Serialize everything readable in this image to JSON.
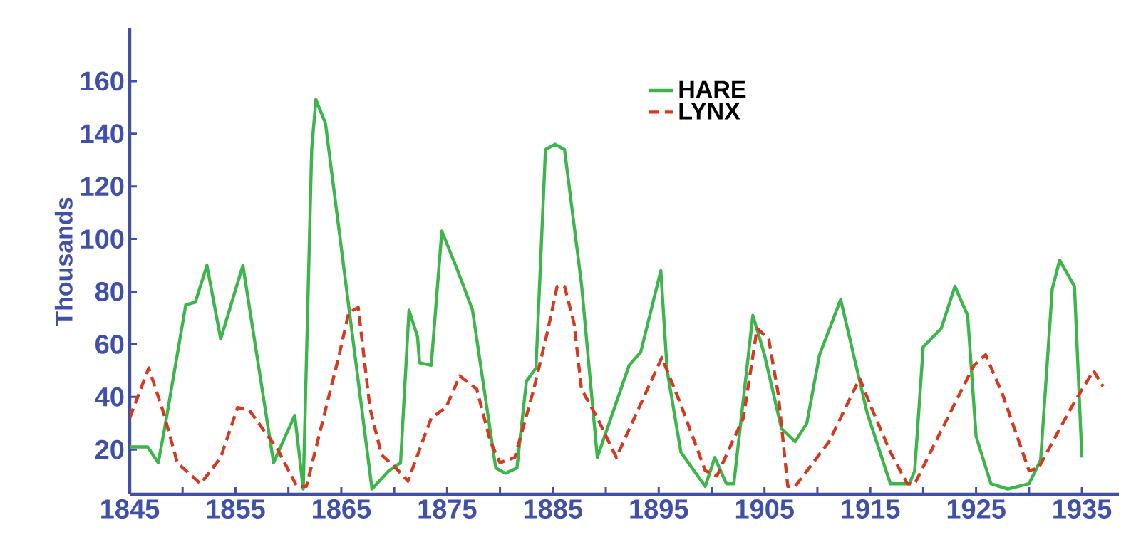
{
  "chart_data": {
    "type": "line",
    "ylabel": "Thousands",
    "xlim": [
      1845,
      1938.5
    ],
    "ylim": [
      3,
      180
    ],
    "xticks": [
      1845,
      {
        "value": 1850,
        "label": null
      },
      1855,
      {
        "value": 1860,
        "label": null
      },
      1865,
      {
        "value": 1870,
        "label": null
      },
      1875,
      {
        "value": 1880,
        "label": null
      },
      1885,
      {
        "value": 1890,
        "label": null
      },
      1895,
      {
        "value": 1900,
        "label": null
      },
      1905,
      {
        "value": 1910,
        "label": null
      },
      1915,
      {
        "value": 1920,
        "label": null
      },
      1925,
      {
        "value": 1930,
        "label": null
      },
      1935
    ],
    "yticks": [
      20,
      40,
      60,
      80,
      100,
      120,
      140,
      160
    ],
    "legend": "top",
    "marker": "none",
    "series": [
      {
        "name": "HARE",
        "color": "#3cb54a",
        "line_style": "solid",
        "x": [
          1845,
          1846.7,
          1847.7,
          1848.3,
          1850.3,
          1851.2,
          1852.3,
          1853.6,
          1855.7,
          1858.6,
          1860.6,
          1861.4,
          1862.2,
          1862.6,
          1863.5,
          1867.9,
          1869.5,
          1870.6,
          1871.4,
          1872.2,
          1872.4,
          1873.5,
          1874.5,
          1876.0,
          1877.4,
          1879.6,
          1880.5,
          1881.6,
          1882.5,
          1883.4,
          1884.3,
          1885.2,
          1886.1,
          1887.7,
          1889.2,
          1892.2,
          1893.3,
          1895.2,
          1895.8,
          1897.1,
          1899.4,
          1900.3,
          1901.4,
          1902.1,
          1903.9,
          1905.0,
          1906.6,
          1907.9,
          1909.0,
          1910.2,
          1912.2,
          1914.7,
          1916.9,
          1918.7,
          1919.2,
          1920.0,
          1921.7,
          1923.0,
          1924.2,
          1925.0,
          1926.4,
          1928.0,
          1930.0,
          1931.1,
          1932.2,
          1932.9,
          1934.3,
          1935.0
        ],
        "values": [
          21,
          21,
          15,
          28,
          75,
          76,
          90,
          62,
          90,
          15,
          33,
          5,
          134,
          153,
          144,
          5,
          12,
          15,
          73,
          63,
          53,
          52,
          103,
          88,
          73,
          13,
          11,
          13,
          46,
          51,
          134,
          136,
          134,
          83,
          17,
          52,
          57,
          88,
          50,
          19,
          6,
          17,
          7,
          7,
          71,
          56,
          28,
          23,
          30,
          56,
          77,
          34,
          7,
          7,
          12,
          59,
          66,
          82,
          71,
          25,
          7,
          5,
          7,
          16,
          81,
          92,
          82,
          17
        ]
      },
      {
        "name": "LYNX",
        "color": "#d23a22",
        "line_style": "dashed",
        "x": [
          1845,
          1846.8,
          1848.2,
          1849.5,
          1851.7,
          1853.6,
          1855.2,
          1856.3,
          1859.0,
          1860.8,
          1861.7,
          1864.8,
          1865.7,
          1866.6,
          1867.7,
          1868.8,
          1870.4,
          1871.3,
          1873.5,
          1874.9,
          1876.2,
          1877.8,
          1879.1,
          1880.0,
          1881.4,
          1883.2,
          1884.5,
          1885.4,
          1886.1,
          1887.0,
          1887.7,
          1889.2,
          1891.0,
          1895.3,
          1897.1,
          1899.4,
          1900.5,
          1903.0,
          1904.3,
          1905.4,
          1906.3,
          1907.2,
          1907.9,
          1911.1,
          1914.0,
          1915.1,
          1916.9,
          1918.5,
          1919.2,
          1922.8,
          1924.8,
          1925.9,
          1927.5,
          1930.0,
          1930.9,
          1934.0,
          1936.1,
          1937.0
        ],
        "values": [
          32,
          51,
          34,
          15,
          7,
          17,
          36,
          35,
          20,
          6,
          6,
          56,
          72,
          74,
          36,
          18,
          12,
          8,
          32,
          36,
          48,
          43,
          23,
          15,
          17,
          43,
          65,
          82,
          82,
          68,
          43,
          32,
          17,
          55,
          37,
          12,
          10,
          32,
          66,
          62,
          41,
          6,
          6,
          23,
          47,
          36,
          19,
          7,
          7,
          36,
          52,
          56,
          41,
          12,
          13,
          36,
          50,
          44
        ]
      }
    ]
  }
}
